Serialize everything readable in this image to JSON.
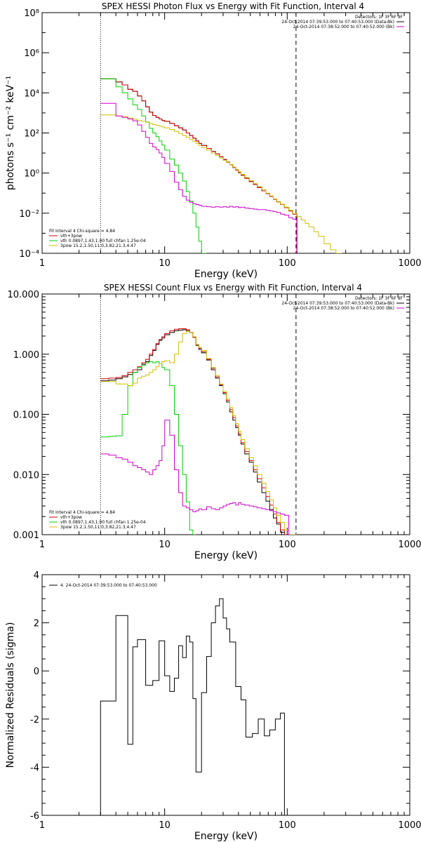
{
  "chart_data": [
    {
      "type": "line",
      "title": "SPEX HESSI Photon Flux vs Energy with Fit Function, Interval 4",
      "xlabel": "Energy (keV)",
      "ylabel": "photons s⁻¹ cm⁻² keV⁻¹",
      "xscale": "log",
      "yscale": "log",
      "xlim": [
        1,
        1000
      ],
      "ylim": [
        0.0001,
        100000000
      ],
      "xtick_labels": [
        "1",
        "10",
        "100",
        "1000"
      ],
      "ytick_values": [
        0.0001,
        0.01,
        1,
        100,
        10000,
        1000000,
        100000000
      ],
      "ytick_labels": [
        "10⁻⁴",
        "10⁻²",
        "10⁰",
        "10²",
        "10⁴",
        "10⁶",
        "10⁸"
      ],
      "legend_top_right": [
        "Detectors: 1F 3F 6F 9F",
        "24-Oct-2014 07:39:53.000 to 07:40:53.000 (Data-Bk)",
        "24-Oct-2014 07:38:52.000 to 07:40:52.000 (Bk)"
      ],
      "legend_bottom_left": [
        "Fit Interval 4   Chi-square = 4.84",
        "vth+3pow",
        "vth 0.0897,1.43,1.00  full chfan 1.25e-04",
        "3pow 15.2,1.50,11.0,3.82,21.3,4.47"
      ],
      "vlines": [
        {
          "x": 3,
          "style": "dotted"
        },
        {
          "x": 118,
          "style": "dashed"
        }
      ],
      "edges": [
        3,
        3.5,
        4,
        4.5,
        5,
        5.5,
        6,
        6.5,
        7,
        7.5,
        8,
        8.5,
        9,
        9.5,
        10,
        11,
        12,
        13,
        14,
        15,
        16,
        17,
        18,
        19,
        20,
        22,
        24,
        26,
        28,
        30,
        32,
        34,
        36,
        38,
        40,
        42,
        45,
        49,
        53,
        57,
        62,
        67,
        72,
        77,
        82,
        88,
        95,
        103,
        111,
        120,
        130,
        140,
        150,
        165,
        180,
        200,
        225,
        250,
        280,
        300
      ],
      "series": [
        {
          "name": "Data-Bk",
          "color": "#000000",
          "values": [
            50000,
            50000,
            35000,
            25000,
            15000,
            12000,
            7000,
            4000,
            2000,
            1100,
            750,
            600,
            500,
            420,
            380,
            300,
            230,
            180,
            140,
            100,
            75,
            55,
            40,
            30,
            24,
            17,
            12,
            9,
            6.5,
            4.8,
            3.5,
            2.6,
            1.9,
            1.4,
            1.05,
            0.78,
            0.55,
            0.38,
            0.27,
            0.19,
            0.13,
            0.095,
            0.068,
            0.05,
            0.037,
            0.027,
            0.019,
            0.013,
            0.009
          ]
        },
        {
          "name": "vth+3pow",
          "color": "#d00000",
          "values": [
            50000,
            50000,
            35000,
            25000,
            15000,
            12000,
            7000,
            4000,
            2000,
            1100,
            750,
            600,
            500,
            420,
            380,
            300,
            230,
            180,
            140,
            100,
            75,
            55,
            40,
            30,
            24,
            17,
            12,
            9,
            6.5,
            4.8,
            3.5,
            2.6,
            1.9,
            1.4,
            1.05,
            0.78,
            0.55,
            0.38,
            0.27,
            0.19,
            0.13,
            0.095,
            0.068,
            0.05,
            0.037,
            0.027,
            0.019,
            0.013,
            0.009
          ]
        },
        {
          "name": "vth",
          "color": "#00d000",
          "values": [
            50000,
            50000,
            20000,
            10000,
            5000,
            2500,
            1500,
            700,
            350,
            170,
            100,
            65,
            40,
            25,
            14,
            5,
            2.5,
            1,
            0.4,
            0.12,
            0.04,
            0.01,
            0.002,
            0.0004,
            8e-05
          ]
        },
        {
          "name": "3pow",
          "color": "#d0c000",
          "values": [
            800,
            800,
            700,
            650,
            550,
            480,
            420,
            380,
            340,
            300,
            260,
            240,
            220,
            200,
            180,
            150,
            120,
            95,
            75,
            60,
            48,
            38,
            30,
            24,
            19,
            14,
            10,
            7.5,
            5.6,
            4.3,
            3.3,
            2.6,
            2,
            1.5,
            1.15,
            0.86,
            0.6,
            0.42,
            0.3,
            0.21,
            0.15,
            0.1,
            0.072,
            0.052,
            0.038,
            0.028,
            0.02,
            0.014,
            0.0095,
            0.0068,
            0.0046,
            0.0031,
            0.0021,
            0.0012,
            0.0007,
            0.0003,
            0.00015,
            6e-05
          ]
        },
        {
          "name": "Bk",
          "color": "#d000d0",
          "values": [
            3000,
            3000,
            700,
            600,
            500,
            400,
            250,
            120,
            60,
            30,
            20,
            15,
            10,
            6,
            3,
            1.2,
            0.35,
            0.15,
            0.07,
            0.045,
            0.035,
            0.03,
            0.027,
            0.025,
            0.022,
            0.021,
            0.02,
            0.021,
            0.02,
            0.021,
            0.02,
            0.022,
            0.02,
            0.021,
            0.019,
            0.02,
            0.018,
            0.017,
            0.016,
            0.015,
            0.015,
            0.014,
            0.013,
            0.012,
            0.011,
            0.009,
            0.008,
            0.006,
            0.005
          ]
        }
      ]
    },
    {
      "type": "line",
      "title": "SPEX HESSI Count Flux vs Energy with Fit Function, Interval 4",
      "xlabel": "Energy (keV)",
      "ylabel": "",
      "xscale": "log",
      "yscale": "log",
      "xlim": [
        1,
        1000
      ],
      "ylim": [
        0.001,
        10
      ],
      "xtick_labels": [
        "1",
        "10",
        "100",
        "1000"
      ],
      "ytick_values": [
        0.001,
        0.01,
        0.1,
        1,
        10
      ],
      "ytick_labels": [
        "0.001",
        "0.010",
        "0.100",
        "1.000",
        "10.000"
      ],
      "legend_top_right": [
        "Detectors: 1F 3F 6F 9F",
        "24-Oct-2014 07:39:53.000 to 07:40:53.000 (Data-Bk)",
        "24-Oct-2014 07:38:52.000 to 07:40:52.000 (Bk)"
      ],
      "legend_bottom_left": [
        "Fit Interval 4   Chi-square = 4.84",
        "vth+3pow",
        "vth 0.0897,1.43,1.00  full chfan 1.25e-04",
        "3pow 15.2,1.50,11.0,3.82,21.3,4.47"
      ],
      "vlines": [
        {
          "x": 3,
          "style": "dotted"
        },
        {
          "x": 118,
          "style": "dashed"
        }
      ],
      "edges": [
        3,
        3.5,
        4,
        4.5,
        5,
        5.5,
        6,
        6.5,
        7,
        7.5,
        8,
        8.5,
        9,
        9.5,
        10,
        11,
        12,
        13,
        14,
        15,
        16,
        17,
        18,
        19,
        20,
        22,
        24,
        26,
        28,
        30,
        32,
        34,
        36,
        38,
        40,
        42,
        45,
        49,
        53,
        57,
        62,
        67,
        72,
        77,
        82,
        88,
        95,
        103,
        111,
        120,
        130
      ],
      "series": [
        {
          "name": "Data-Bk",
          "color": "#000000",
          "values": [
            0.36,
            0.37,
            0.39,
            0.42,
            0.46,
            0.5,
            0.55,
            0.68,
            0.75,
            0.95,
            1.15,
            1.45,
            1.7,
            1.85,
            2.1,
            2.3,
            2.45,
            2.5,
            2.55,
            2.45,
            2.3,
            1.9,
            1.4,
            1.2,
            1.05,
            0.8,
            0.55,
            0.4,
            0.3,
            0.22,
            0.16,
            0.11,
            0.08,
            0.06,
            0.045,
            0.032,
            0.022,
            0.016,
            0.011,
            0.0075,
            0.005,
            0.0036,
            0.0026,
            0.0019,
            0.0015,
            0.0011
          ]
        },
        {
          "name": "vth+3pow",
          "color": "#d00000",
          "values": [
            0.39,
            0.4,
            0.41,
            0.44,
            0.5,
            0.55,
            0.62,
            0.72,
            0.82,
            1.0,
            1.2,
            1.5,
            1.75,
            1.95,
            2.2,
            2.45,
            2.6,
            2.65,
            2.65,
            2.55,
            2.3,
            1.9,
            1.45,
            1.25,
            1.1,
            0.82,
            0.58,
            0.42,
            0.31,
            0.23,
            0.17,
            0.12,
            0.088,
            0.064,
            0.047,
            0.034,
            0.024,
            0.017,
            0.012,
            0.0085,
            0.006,
            0.0043,
            0.0031,
            0.0022,
            0.0016,
            0.0012,
            0.0009,
            0.0006
          ]
        },
        {
          "name": "vth",
          "color": "#00d000",
          "values": [
            0.042,
            0.043,
            0.044,
            0.1,
            0.3,
            0.5,
            0.6,
            0.65,
            0.72,
            0.75,
            0.72,
            0.75,
            0.7,
            0.6,
            0.55,
            0.3,
            0.1,
            0.03,
            0.01,
            0.0035,
            0.0012,
            0.0004
          ]
        },
        {
          "name": "3pow",
          "color": "#d0c000",
          "values": [
            0.35,
            0.35,
            0.32,
            0.32,
            0.3,
            0.33,
            0.4,
            0.43,
            0.45,
            0.5,
            0.55,
            0.62,
            0.7,
            0.75,
            0.78,
            0.72,
            1.0,
            1.6,
            2.2,
            2.4,
            2.3,
            1.95,
            1.45,
            1.3,
            1.15,
            0.85,
            0.6,
            0.44,
            0.32,
            0.24,
            0.18,
            0.13,
            0.095,
            0.07,
            0.052,
            0.038,
            0.027,
            0.019,
            0.014,
            0.01,
            0.0072,
            0.0052,
            0.0038,
            0.0028,
            0.0021,
            0.0016,
            0.0012,
            0.0009,
            0.0007
          ]
        },
        {
          "name": "Bk",
          "color": "#d000d0",
          "values": [
            0.022,
            0.021,
            0.019,
            0.018,
            0.016,
            0.014,
            0.013,
            0.012,
            0.011,
            0.01,
            0.012,
            0.014,
            0.017,
            0.03,
            0.08,
            0.045,
            0.012,
            0.005,
            0.003,
            0.0028,
            0.0026,
            0.0024,
            0.0025,
            0.0027,
            0.0026,
            0.0029,
            0.0027,
            0.0026,
            0.0028,
            0.003,
            0.0032,
            0.0033,
            0.0034,
            0.0031,
            0.0034,
            0.0032,
            0.0031,
            0.003,
            0.0029,
            0.0028,
            0.0027,
            0.0026,
            0.0025,
            0.0024,
            0.0023,
            0.0022,
            0.0021
          ]
        }
      ]
    },
    {
      "type": "line",
      "title": "",
      "xlabel": "Energy (keV)",
      "ylabel": "Normalized Residuals (sigma)",
      "xscale": "log",
      "yscale": "linear",
      "xlim": [
        1,
        1000
      ],
      "ylim": [
        -6,
        4
      ],
      "xtick_labels": [
        "1",
        "10",
        "100",
        "1000"
      ],
      "ytick_values": [
        -6,
        -4,
        -2,
        0,
        2,
        4
      ],
      "ytick_labels": [
        "-6",
        "-4",
        "-2",
        "0",
        "2",
        "4"
      ],
      "legend_top_left": [
        "4. 24-Oct-2014 07:39:53.000 to 07:40:53.000"
      ],
      "edges": [
        3,
        4,
        5,
        5.5,
        6,
        7,
        8,
        9,
        10,
        11,
        12,
        13,
        14,
        15,
        16,
        17,
        18,
        20,
        22,
        24,
        26,
        28,
        30,
        32,
        34,
        38,
        42,
        46,
        52,
        58,
        65,
        72,
        80,
        88,
        95,
        105,
        118
      ],
      "series": [
        {
          "name": "4. 24-Oct-2014 07:39:53.000 to 07:40:53.000",
          "color": "#000000",
          "values": [
            -1.25,
            2.3,
            -3.05,
            1.0,
            1.3,
            -0.6,
            -0.4,
            1.25,
            -0.2,
            -0.85,
            -0.3,
            1.05,
            0.55,
            1.45,
            1.2,
            -1.15,
            -4.2,
            -0.9,
            0.6,
            2.0,
            2.7,
            3.0,
            2.2,
            1.75,
            1.2,
            -0.65,
            -1.2,
            -2.75,
            -2.6,
            -2.0,
            -2.7,
            -2.45,
            -2.0,
            -1.75
          ]
        }
      ]
    }
  ]
}
